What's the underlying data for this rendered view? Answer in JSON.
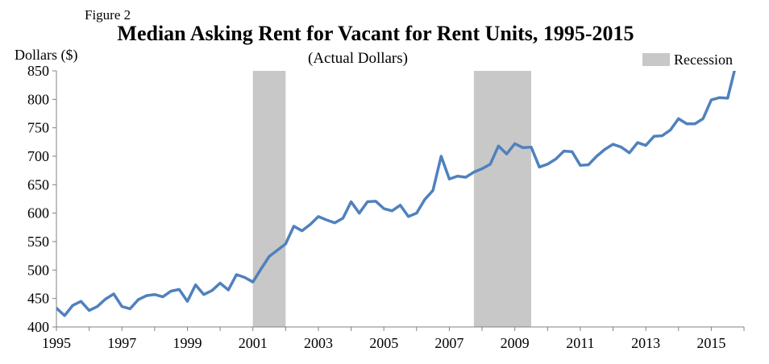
{
  "figure_label": "Figure 2",
  "chart_data": {
    "type": "line",
    "title": "Median Asking Rent for Vacant for Rent Units, 1995-2015",
    "subtitle": "(Actual Dollars)",
    "ylabel": "Dollars ($)",
    "xlabel": "",
    "ylim": [
      400,
      850
    ],
    "yticks": [
      400,
      450,
      500,
      550,
      600,
      650,
      700,
      750,
      800,
      850
    ],
    "xlim": [
      1995,
      2016
    ],
    "xtick_values": [
      1995,
      1997,
      1999,
      2001,
      2003,
      2005,
      2007,
      2009,
      2011,
      2013,
      2015
    ],
    "xtick_labels": [
      "1995",
      "1997",
      "1999",
      "2001",
      "2003",
      "2005",
      "2007",
      "2009",
      "2011",
      "2013",
      "2015"
    ],
    "grid": false,
    "line_color": "#4f81bd",
    "recession_color": "#c8c8c8",
    "legend": {
      "position": "top-right",
      "entries": [
        {
          "label": "Recession",
          "color": "#c8c8c8"
        }
      ]
    },
    "recessions": [
      {
        "start": 2001.0,
        "end": 2002.0
      },
      {
        "start": 2007.75,
        "end": 2009.5
      }
    ],
    "series": [
      {
        "quarterly_start": 1995.0,
        "values": [
          433,
          420,
          438,
          445,
          429,
          436,
          449,
          458,
          436,
          432,
          448,
          455,
          457,
          453,
          463,
          466,
          445,
          474,
          457,
          464,
          477,
          465,
          492,
          487,
          479,
          502,
          524,
          535,
          546,
          577,
          569,
          580,
          594,
          588,
          583,
          591,
          620,
          600,
          620,
          621,
          608,
          604,
          614,
          594,
          600,
          624,
          640,
          700,
          660,
          665,
          663,
          672,
          678,
          686,
          718,
          704,
          722,
          715,
          716,
          681,
          686,
          695,
          709,
          708,
          684,
          685,
          700,
          712,
          721,
          716,
          706,
          724,
          719,
          735,
          736,
          746,
          766,
          757,
          757,
          766,
          799,
          803,
          802,
          860
        ]
      }
    ]
  }
}
